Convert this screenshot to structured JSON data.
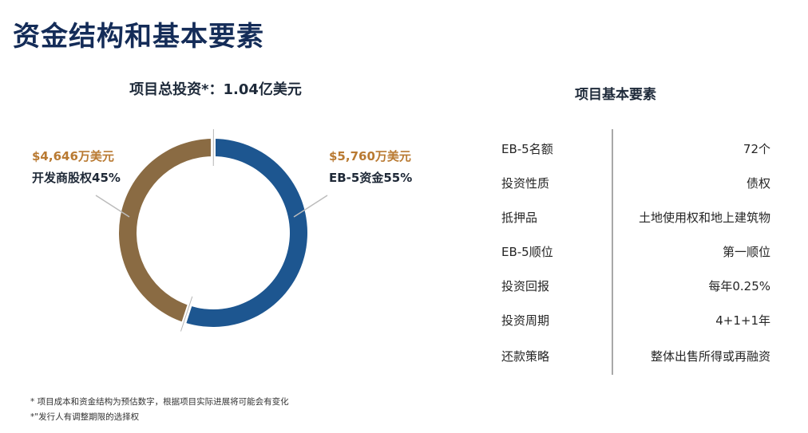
{
  "page": {
    "title": "资金结构和基本要素"
  },
  "chart_data": {
    "type": "pie",
    "title": "项目总投资*：1.04亿美元",
    "slices": [
      {
        "amount_label": "$5,760万美元",
        "label": "EB-5资金55%",
        "value": 55,
        "color": "#1d5690"
      },
      {
        "amount_label": "$4,646万美元",
        "label": "开发商股权45%",
        "value": 45,
        "color": "#8a6b43"
      }
    ]
  },
  "panel": {
    "title": "项目基本要素",
    "rows": [
      {
        "key": "EB-5名额",
        "value": "72个"
      },
      {
        "key": "投资性质",
        "value": "债权"
      },
      {
        "key": "抵押品",
        "value": "土地使用权和地上建筑物"
      },
      {
        "key": "EB-5顺位",
        "value": "第一顺位"
      },
      {
        "key": "投资回报",
        "value": "每年0.25%"
      },
      {
        "key": "投资周期",
        "value": "4+1+1年"
      },
      {
        "key": "还款策略",
        "value": "整体出售所得或再融资"
      }
    ]
  },
  "footnotes": [
    "* 项目成本和资金结构为预估数字，根据项目实际进展将可能会有变化",
    "*\"发行人有调整期限的选择权"
  ]
}
